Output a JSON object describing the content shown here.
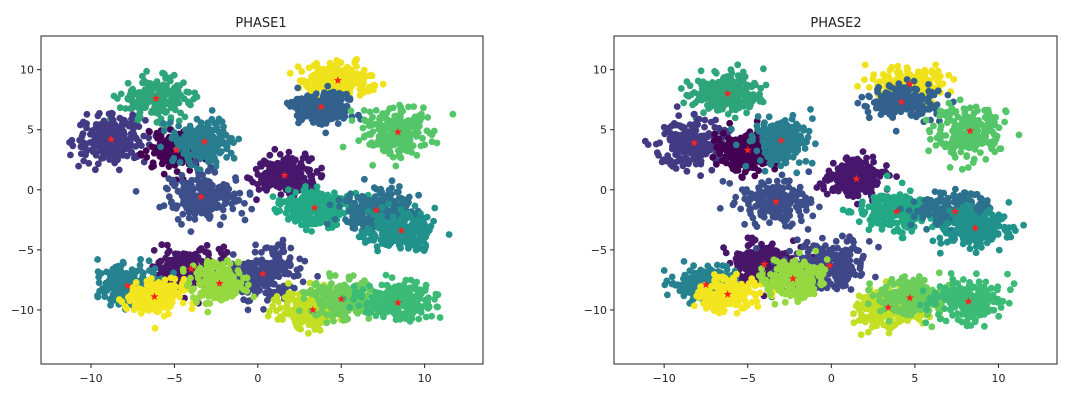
{
  "chart_data": [
    {
      "type": "scatter",
      "title": "PHASE1",
      "xlim": [
        -13,
        13.5
      ],
      "ylim": [
        -14.5,
        12.8
      ],
      "xticks": [
        -10,
        -5,
        0,
        5,
        10
      ],
      "yticks": [
        10,
        5,
        0,
        -5,
        -10
      ],
      "xtick_labels": [
        "−10",
        "−5",
        "0",
        "5",
        "10"
      ],
      "ytick_labels": [
        "10",
        "5",
        "0",
        "−5",
        "−10"
      ],
      "grid": false,
      "centroid_color": "#ff2020",
      "clusters": [
        {
          "cx": -6.1,
          "cy": 7.6,
          "sx": 1.4,
          "sy": 1.1,
          "color": "#2ea47a"
        },
        {
          "cx": -8.8,
          "cy": 4.2,
          "sx": 1.4,
          "sy": 1.3,
          "color": "#433a84"
        },
        {
          "cx": -4.9,
          "cy": 3.3,
          "sx": 1.1,
          "sy": 1.1,
          "color": "#440154"
        },
        {
          "cx": -3.2,
          "cy": 4.0,
          "sx": 1.1,
          "sy": 1.3,
          "color": "#287d8e"
        },
        {
          "cx": 4.8,
          "cy": 9.1,
          "sx": 1.4,
          "sy": 0.9,
          "color": "#f0e21a"
        },
        {
          "cx": 3.8,
          "cy": 6.9,
          "sx": 1.3,
          "sy": 0.9,
          "color": "#33618d"
        },
        {
          "cx": 8.4,
          "cy": 4.8,
          "sx": 1.4,
          "sy": 1.4,
          "color": "#54c568"
        },
        {
          "cx": 1.6,
          "cy": 1.2,
          "sx": 1.2,
          "sy": 1.0,
          "color": "#46176c"
        },
        {
          "cx": -3.4,
          "cy": -0.6,
          "sx": 1.4,
          "sy": 1.2,
          "color": "#3c4f8a"
        },
        {
          "cx": 3.4,
          "cy": -1.5,
          "sx": 1.4,
          "sy": 1.0,
          "color": "#22a884"
        },
        {
          "cx": 7.1,
          "cy": -1.7,
          "sx": 1.4,
          "sy": 1.1,
          "color": "#2c718e"
        },
        {
          "cx": 8.6,
          "cy": -3.4,
          "sx": 1.3,
          "sy": 1.1,
          "color": "#21918c"
        },
        {
          "cx": -4.0,
          "cy": -6.6,
          "sx": 1.4,
          "sy": 1.1,
          "color": "#481668"
        },
        {
          "cx": 0.3,
          "cy": -7.0,
          "sx": 1.5,
          "sy": 1.4,
          "color": "#3f4788"
        },
        {
          "cx": -7.8,
          "cy": -8.0,
          "sx": 1.2,
          "sy": 1.0,
          "color": "#26828e"
        },
        {
          "cx": -6.2,
          "cy": -8.9,
          "sx": 1.1,
          "sy": 0.9,
          "color": "#f4e61e"
        },
        {
          "cx": -2.3,
          "cy": -7.8,
          "sx": 1.1,
          "sy": 1.0,
          "color": "#95d840"
        },
        {
          "cx": 3.3,
          "cy": -10.0,
          "sx": 1.3,
          "sy": 1.1,
          "color": "#c2df23"
        },
        {
          "cx": 5.0,
          "cy": -9.1,
          "sx": 1.2,
          "sy": 1.0,
          "color": "#6ccd5a"
        },
        {
          "cx": 8.4,
          "cy": -9.4,
          "sx": 1.4,
          "sy": 1.2,
          "color": "#3bbb75"
        }
      ]
    },
    {
      "type": "scatter",
      "title": "PHASE2",
      "xlim": [
        -13,
        13.5
      ],
      "ylim": [
        -14.5,
        12.8
      ],
      "xticks": [
        -10,
        -5,
        0,
        5,
        10
      ],
      "yticks": [
        10,
        5,
        0,
        -5,
        -10
      ],
      "xtick_labels": [
        "−10",
        "−5",
        "0",
        "5",
        "10"
      ],
      "ytick_labels": [
        "10",
        "5",
        "0",
        "−5",
        "−10"
      ],
      "grid": false,
      "centroid_color": "#ff2020",
      "clusters": [
        {
          "cx": -6.2,
          "cy": 8.0,
          "sx": 1.4,
          "sy": 1.1,
          "color": "#2ea47a"
        },
        {
          "cx": -8.2,
          "cy": 3.9,
          "sx": 1.4,
          "sy": 1.3,
          "color": "#433a84"
        },
        {
          "cx": -5.0,
          "cy": 3.3,
          "sx": 1.1,
          "sy": 1.1,
          "color": "#440154"
        },
        {
          "cx": -3.0,
          "cy": 4.1,
          "sx": 1.1,
          "sy": 1.3,
          "color": "#287d8e"
        },
        {
          "cx": 4.7,
          "cy": 8.8,
          "sx": 1.4,
          "sy": 0.9,
          "color": "#f0e21a"
        },
        {
          "cx": 4.2,
          "cy": 7.3,
          "sx": 1.3,
          "sy": 0.9,
          "color": "#33618d"
        },
        {
          "cx": 8.3,
          "cy": 4.9,
          "sx": 1.4,
          "sy": 1.4,
          "color": "#54c568"
        },
        {
          "cx": 1.5,
          "cy": 0.9,
          "sx": 1.2,
          "sy": 1.0,
          "color": "#46176c"
        },
        {
          "cx": -3.3,
          "cy": -1.0,
          "sx": 1.4,
          "sy": 1.2,
          "color": "#3c4f8a"
        },
        {
          "cx": 3.9,
          "cy": -1.8,
          "sx": 1.4,
          "sy": 1.0,
          "color": "#22a884"
        },
        {
          "cx": 7.4,
          "cy": -1.8,
          "sx": 1.4,
          "sy": 1.1,
          "color": "#2c718e"
        },
        {
          "cx": 8.6,
          "cy": -3.2,
          "sx": 1.3,
          "sy": 1.1,
          "color": "#21918c"
        },
        {
          "cx": -4.0,
          "cy": -6.2,
          "sx": 1.4,
          "sy": 1.1,
          "color": "#481668"
        },
        {
          "cx": -0.1,
          "cy": -6.3,
          "sx": 1.5,
          "sy": 1.4,
          "color": "#3f4788"
        },
        {
          "cx": -7.5,
          "cy": -7.9,
          "sx": 1.2,
          "sy": 1.0,
          "color": "#26828e"
        },
        {
          "cx": -6.2,
          "cy": -8.7,
          "sx": 1.1,
          "sy": 0.9,
          "color": "#f4e61e"
        },
        {
          "cx": -2.3,
          "cy": -7.4,
          "sx": 1.1,
          "sy": 1.0,
          "color": "#95d840"
        },
        {
          "cx": 3.4,
          "cy": -9.8,
          "sx": 1.3,
          "sy": 1.1,
          "color": "#c2df23"
        },
        {
          "cx": 4.7,
          "cy": -9.0,
          "sx": 1.2,
          "sy": 1.0,
          "color": "#6ccd5a"
        },
        {
          "cx": 8.2,
          "cy": -9.3,
          "sx": 1.4,
          "sy": 1.2,
          "color": "#3bbb75"
        }
      ]
    }
  ]
}
